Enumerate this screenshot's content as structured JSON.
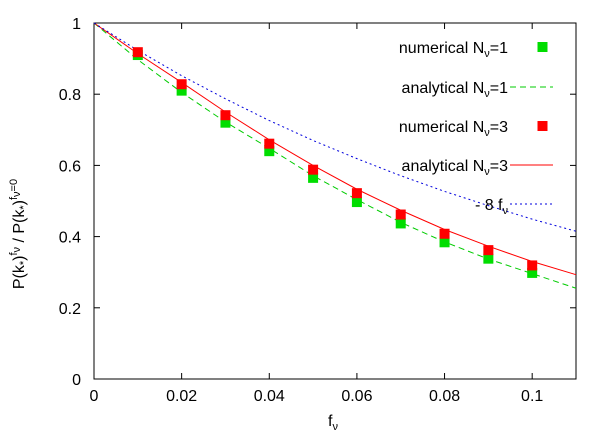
{
  "chart_data": {
    "type": "scatter",
    "xlabel_main": "f",
    "xlabel_sub": "ν",
    "ylabel": {
      "p1": "P(k",
      "p1_sub": "*",
      "p1_close": ")",
      "p1_sup": "f",
      "p1_sup_sub": "ν",
      "sep": " / ",
      "p2": "P(k",
      "p2_sub": "*",
      "p2_close": ")",
      "p2_sup": "f",
      "p2_sup_sub": "ν",
      "p2_sup_tail": "=0"
    },
    "xlim": [
      0,
      0.11
    ],
    "ylim": [
      0,
      1
    ],
    "xticks": [
      0,
      0.02,
      0.04,
      0.06,
      0.08,
      0.1
    ],
    "xtick_labels": [
      "0",
      "0.02",
      "0.04",
      "0.06",
      "0.08",
      "0.1"
    ],
    "yticks": [
      0,
      0.2,
      0.4,
      0.6,
      0.8,
      1
    ],
    "ytick_labels": [
      "0",
      "0.2",
      "0.4",
      "0.6",
      "0.8",
      "1"
    ],
    "grid": false,
    "legend_position": "top-right",
    "series": [
      {
        "name_main": "numerical N",
        "name_sub": "ν",
        "name_tail": "=1",
        "kind": "points",
        "color": "#00dd00",
        "x": [
          0.01,
          0.02,
          0.03,
          0.04,
          0.05,
          0.06,
          0.07,
          0.08,
          0.09,
          0.1
        ],
        "y": [
          0.91,
          0.81,
          0.72,
          0.64,
          0.565,
          0.497,
          0.437,
          0.384,
          0.338,
          0.298
        ]
      },
      {
        "name_main": "analytical N",
        "name_sub": "ν",
        "name_tail": "=1",
        "kind": "line",
        "dash": "6,4",
        "color": "#00cc00",
        "x": [
          0,
          0.01,
          0.02,
          0.03,
          0.04,
          0.05,
          0.06,
          0.07,
          0.08,
          0.09,
          0.1,
          0.11
        ],
        "y": [
          1.0,
          0.897,
          0.805,
          0.722,
          0.648,
          0.571,
          0.504,
          0.44,
          0.385,
          0.337,
          0.296,
          0.255
        ]
      },
      {
        "name_main": "numerical N",
        "name_sub": "ν",
        "name_tail": "=3",
        "kind": "points",
        "color": "#ff0000",
        "x": [
          0.01,
          0.02,
          0.03,
          0.04,
          0.05,
          0.06,
          0.07,
          0.08,
          0.09,
          0.1
        ],
        "y": [
          0.918,
          0.828,
          0.741,
          0.661,
          0.588,
          0.522,
          0.462,
          0.408,
          0.362,
          0.319
        ]
      },
      {
        "name_main": "analytical N",
        "name_sub": "ν",
        "name_tail": "=3",
        "kind": "line",
        "dash": "",
        "color": "#ff0000",
        "x": [
          0,
          0.01,
          0.02,
          0.03,
          0.04,
          0.05,
          0.06,
          0.07,
          0.08,
          0.09,
          0.1,
          0.11
        ],
        "y": [
          1.0,
          0.914,
          0.833,
          0.75,
          0.672,
          0.6,
          0.533,
          0.474,
          0.42,
          0.373,
          0.33,
          0.293
        ]
      },
      {
        "name_main": "- 8 f",
        "name_sub": "ν",
        "name_tail": "",
        "kind": "line",
        "dash": "2,3",
        "color": "#0000dd",
        "x": [
          0,
          0.01,
          0.02,
          0.03,
          0.04,
          0.05,
          0.06,
          0.07,
          0.08,
          0.09,
          0.1,
          0.11
        ],
        "y": [
          1.0,
          0.923,
          0.852,
          0.787,
          0.726,
          0.67,
          0.619,
          0.571,
          0.527,
          0.487,
          0.449,
          0.415
        ]
      }
    ]
  }
}
